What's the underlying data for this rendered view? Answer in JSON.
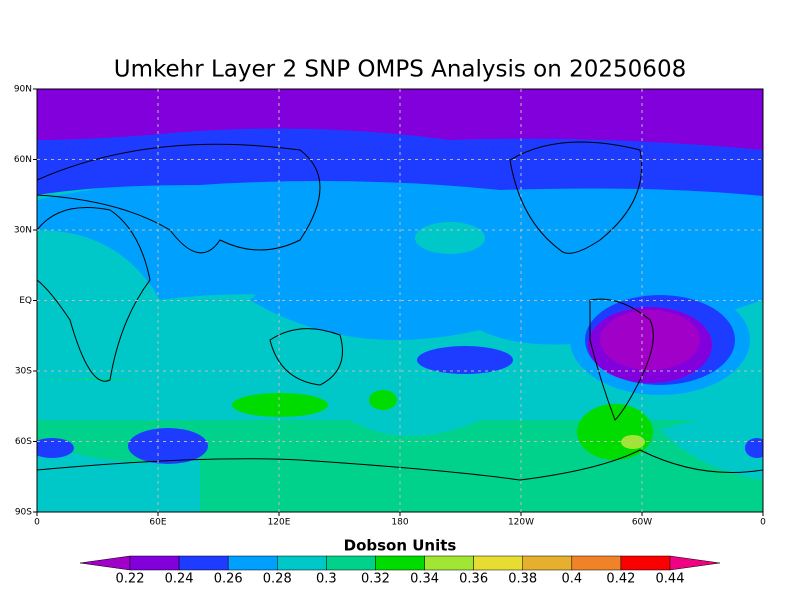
{
  "chart_data": {
    "type": "map",
    "title": "Umkehr Layer 2 SNP OMPS Analysis on 20250608",
    "xlim": [
      0,
      360
    ],
    "xticks": [
      0,
      {
        "value": 60,
        "label": "60E"
      },
      {
        "value": 120,
        "label": "120E"
      },
      180,
      {
        "value": 240,
        "label": "120W"
      },
      {
        "value": 300,
        "label": "60W"
      },
      {
        "value": 360,
        "label": "0"
      }
    ],
    "ylim": [
      -90,
      90
    ],
    "yticks": [
      {
        "value": -90,
        "label": "90S"
      },
      {
        "value": -60,
        "label": "60S"
      },
      {
        "value": -30,
        "label": "30S"
      },
      {
        "value": 0,
        "label": "EQ"
      },
      {
        "value": 30,
        "label": "30N"
      },
      {
        "value": 60,
        "label": "60N"
      },
      {
        "value": 90,
        "label": "90N"
      }
    ],
    "grid": true,
    "colorbar": {
      "label": "Dobson Units",
      "levels": [
        0.22,
        0.24,
        0.26,
        0.28,
        0.3,
        0.32,
        0.34,
        0.36,
        0.38,
        0.4,
        0.42,
        0.44
      ],
      "colors": [
        "#a000c8",
        "#8200dc",
        "#1e3cff",
        "#00a0ff",
        "#00c8c8",
        "#00d28c",
        "#00dc00",
        "#a0e632",
        "#e6dc32",
        "#e6af2d",
        "#f08228",
        "#fa0000",
        "#f00082"
      ]
    }
  }
}
